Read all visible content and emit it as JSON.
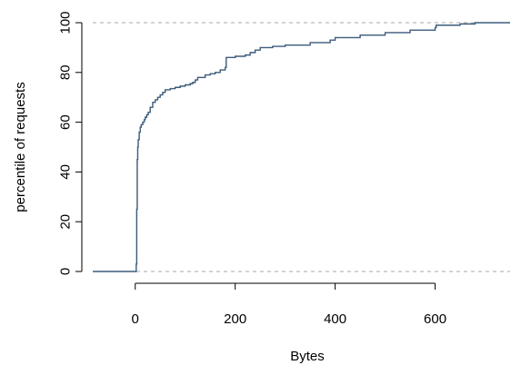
{
  "chart_data": {
    "type": "line",
    "title": "",
    "xlabel": "Bytes",
    "ylabel": "percentile of requests",
    "xlim": [
      -85,
      750
    ],
    "ylim": [
      0,
      100
    ],
    "x_ticks": [
      0,
      200,
      400,
      600
    ],
    "y_ticks": [
      0,
      20,
      40,
      60,
      80,
      100
    ],
    "reference_lines_y": [
      0,
      100
    ],
    "grid": false,
    "series": [
      {
        "color": "#3b5b7a",
        "step": true,
        "points": [
          [
            -85,
            0
          ],
          [
            2,
            0
          ],
          [
            2,
            3
          ],
          [
            3,
            25
          ],
          [
            4,
            45
          ],
          [
            5,
            50
          ],
          [
            6,
            53
          ],
          [
            8,
            56
          ],
          [
            10,
            58
          ],
          [
            12,
            59
          ],
          [
            15,
            60
          ],
          [
            18,
            61
          ],
          [
            20,
            62
          ],
          [
            23,
            63
          ],
          [
            26,
            64
          ],
          [
            30,
            66
          ],
          [
            35,
            68
          ],
          [
            40,
            69
          ],
          [
            45,
            70
          ],
          [
            50,
            71
          ],
          [
            55,
            72
          ],
          [
            60,
            73
          ],
          [
            70,
            73.5
          ],
          [
            80,
            74
          ],
          [
            90,
            74.5
          ],
          [
            100,
            75
          ],
          [
            110,
            75.5
          ],
          [
            115,
            76
          ],
          [
            120,
            77
          ],
          [
            125,
            78
          ],
          [
            140,
            79
          ],
          [
            150,
            79.5
          ],
          [
            160,
            80
          ],
          [
            170,
            81
          ],
          [
            180,
            82
          ],
          [
            182,
            86
          ],
          [
            200,
            86.5
          ],
          [
            220,
            87
          ],
          [
            230,
            88
          ],
          [
            240,
            89
          ],
          [
            250,
            90
          ],
          [
            275,
            90.5
          ],
          [
            300,
            91
          ],
          [
            350,
            92
          ],
          [
            390,
            93
          ],
          [
            400,
            94
          ],
          [
            450,
            95
          ],
          [
            500,
            96
          ],
          [
            550,
            97
          ],
          [
            600,
            98
          ],
          [
            602,
            99
          ],
          [
            650,
            99.5
          ],
          [
            680,
            100
          ],
          [
            750,
            100
          ]
        ]
      }
    ]
  }
}
